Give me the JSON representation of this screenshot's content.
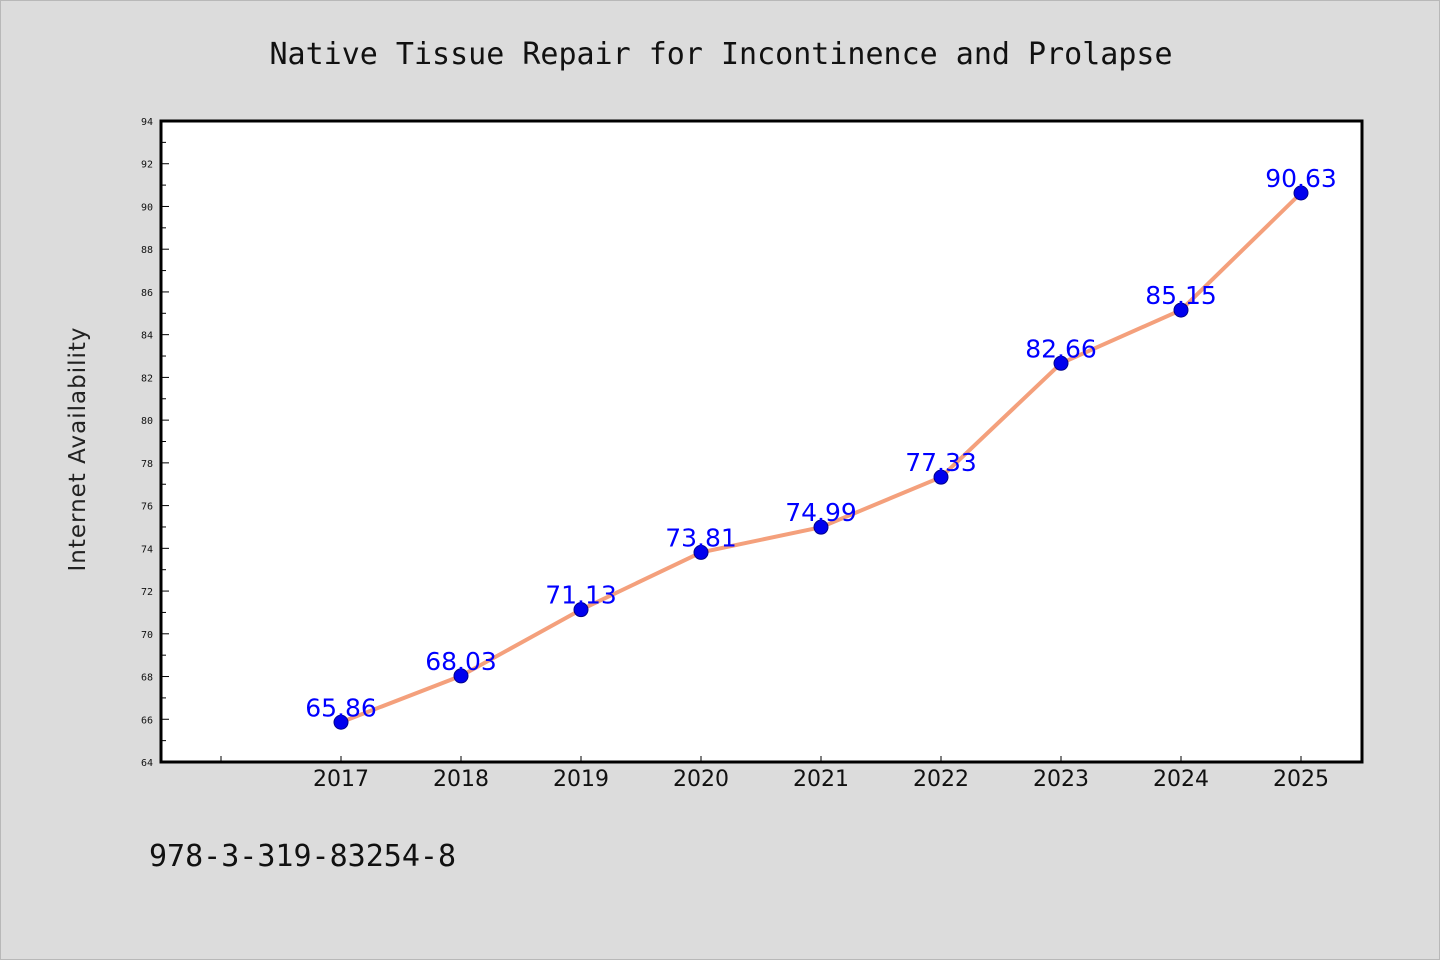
{
  "chart_data": {
    "type": "line",
    "title": "Native Tissue Repair for Incontinence and Prolapse",
    "xlabel": "",
    "ylabel": "Internet Availability",
    "categories": [
      "2017",
      "2018",
      "2019",
      "2020",
      "2021",
      "2022",
      "2023",
      "2024",
      "2025"
    ],
    "series": [
      {
        "values": [
          65.86,
          68.03,
          71.13,
          73.81,
          74.99,
          77.33,
          82.66,
          85.15,
          90.63
        ],
        "labels": [
          "65.86",
          "68.03",
          "71.13",
          "73.81",
          "74.99",
          "77.33",
          "82.66",
          "85.15",
          "90.63"
        ],
        "line_color": "#f4a07c",
        "marker_color": "#0000ee",
        "label_color": "#0000ff"
      }
    ],
    "ylim": [
      64,
      94
    ],
    "yticks": [
      "64",
      "66",
      "68",
      "70",
      "72",
      "74",
      "76",
      "78",
      "80",
      "82",
      "84",
      "86",
      "88",
      "90",
      "92",
      "94"
    ],
    "grid": false,
    "legend": "none"
  },
  "footer": {
    "isbn": "978-3-319-83254-8"
  },
  "colors": {
    "background": "#dcdcdc",
    "plot_area": "#ffffff",
    "axis": "#000000"
  }
}
